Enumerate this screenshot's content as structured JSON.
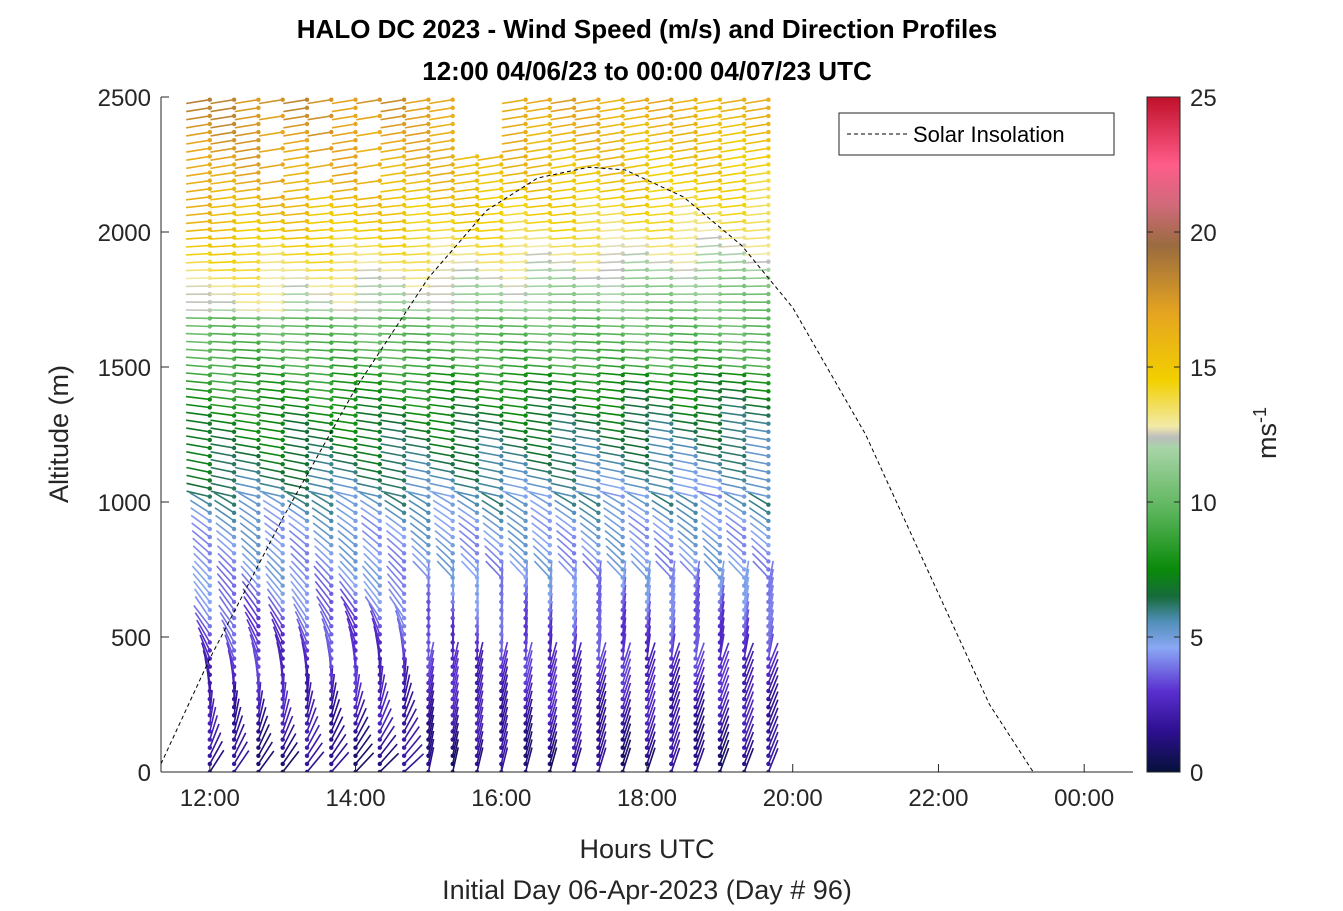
{
  "chart_data": {
    "type": "wind_barb_profile",
    "title_line1": "HALO DC 2023 - Wind Speed (m/s) and Direction Profiles",
    "title_line2": "12:00 04/06/23 to 00:00 04/07/23  UTC",
    "xlabel": "Hours UTC",
    "xlabel2": "Initial Day 06-Apr-2023 (Day # 96)",
    "ylabel": "Altitude (m)",
    "colorbar_label": "ms",
    "colorbar_label_sup": "-1",
    "legend_entry": "Solar Insolation",
    "legend_placement": "top-right",
    "x_range_hours": [
      11.33,
      24.67
    ],
    "y_range_m": [
      0,
      2500
    ],
    "x_ticks": [
      {
        "hour": 12,
        "label": "12:00"
      },
      {
        "hour": 14,
        "label": "14:00"
      },
      {
        "hour": 16,
        "label": "16:00"
      },
      {
        "hour": 18,
        "label": "18:00"
      },
      {
        "hour": 20,
        "label": "20:00"
      },
      {
        "hour": 22,
        "label": "22:00"
      },
      {
        "hour": 24,
        "label": "00:00"
      }
    ],
    "y_ticks": [
      {
        "value": 0,
        "label": "0"
      },
      {
        "value": 500,
        "label": "500"
      },
      {
        "value": 1000,
        "label": "1000"
      },
      {
        "value": 1500,
        "label": "1500"
      },
      {
        "value": 2000,
        "label": "2000"
      },
      {
        "value": 2500,
        "label": "2500"
      }
    ],
    "colorbar_range": [
      0,
      25
    ],
    "colorbar_ticks": [
      {
        "value": 0,
        "label": "0"
      },
      {
        "value": 5,
        "label": "5"
      },
      {
        "value": 10,
        "label": "10"
      },
      {
        "value": 15,
        "label": "15"
      },
      {
        "value": 20,
        "label": "20"
      },
      {
        "value": 25,
        "label": "25"
      }
    ],
    "colormap_stops": [
      {
        "v": 0,
        "c": "#06103a"
      },
      {
        "v": 1.5,
        "c": "#2d0f8f"
      },
      {
        "v": 3,
        "c": "#5a2fd0"
      },
      {
        "v": 4.6,
        "c": "#8aa8f5"
      },
      {
        "v": 5.6,
        "c": "#4f8eb5"
      },
      {
        "v": 6.5,
        "c": "#166b3a"
      },
      {
        "v": 7.5,
        "c": "#0a8a0a"
      },
      {
        "v": 9.5,
        "c": "#55b255"
      },
      {
        "v": 12,
        "c": "#a8d4a8"
      },
      {
        "v": 12.4,
        "c": "#bdbdbd"
      },
      {
        "v": 12.8,
        "c": "#f2eaa8"
      },
      {
        "v": 14.5,
        "c": "#f2d000"
      },
      {
        "v": 17,
        "c": "#e5a420"
      },
      {
        "v": 19.5,
        "c": "#9a6b3f"
      },
      {
        "v": 21,
        "c": "#d06a7a"
      },
      {
        "v": 22.5,
        "c": "#ff5c8a"
      },
      {
        "v": 25,
        "c": "#c0102a"
      }
    ],
    "profiles": {
      "start_hour": 12.0,
      "end_hour": 19.8,
      "interval_min": 20,
      "altitude_step_m": 30,
      "max_altitude_m": 2500
    },
    "wind_speed_by_altitude": {
      "altitude_m": [
        0,
        300,
        500,
        700,
        900,
        1100,
        1300,
        1500,
        1800,
        2000,
        2200,
        2500
      ],
      "speed_ms": [
        1.2,
        2.5,
        3.3,
        4.5,
        4.8,
        6.5,
        7.5,
        9.0,
        11.0,
        13.0,
        14.5,
        16.0
      ]
    },
    "solar_insolation_curve": {
      "hours": [
        11.33,
        12.0,
        13.0,
        14.0,
        15.0,
        15.8,
        16.5,
        17.2,
        17.7,
        18.5,
        19.3,
        20.0,
        21.0,
        22.0,
        22.7,
        23.3,
        24.67
      ],
      "altitude_m": [
        30,
        420,
        940,
        1420,
        1830,
        2080,
        2200,
        2240,
        2230,
        2130,
        1950,
        1720,
        1250,
        660,
        250,
        0,
        0
      ]
    }
  }
}
